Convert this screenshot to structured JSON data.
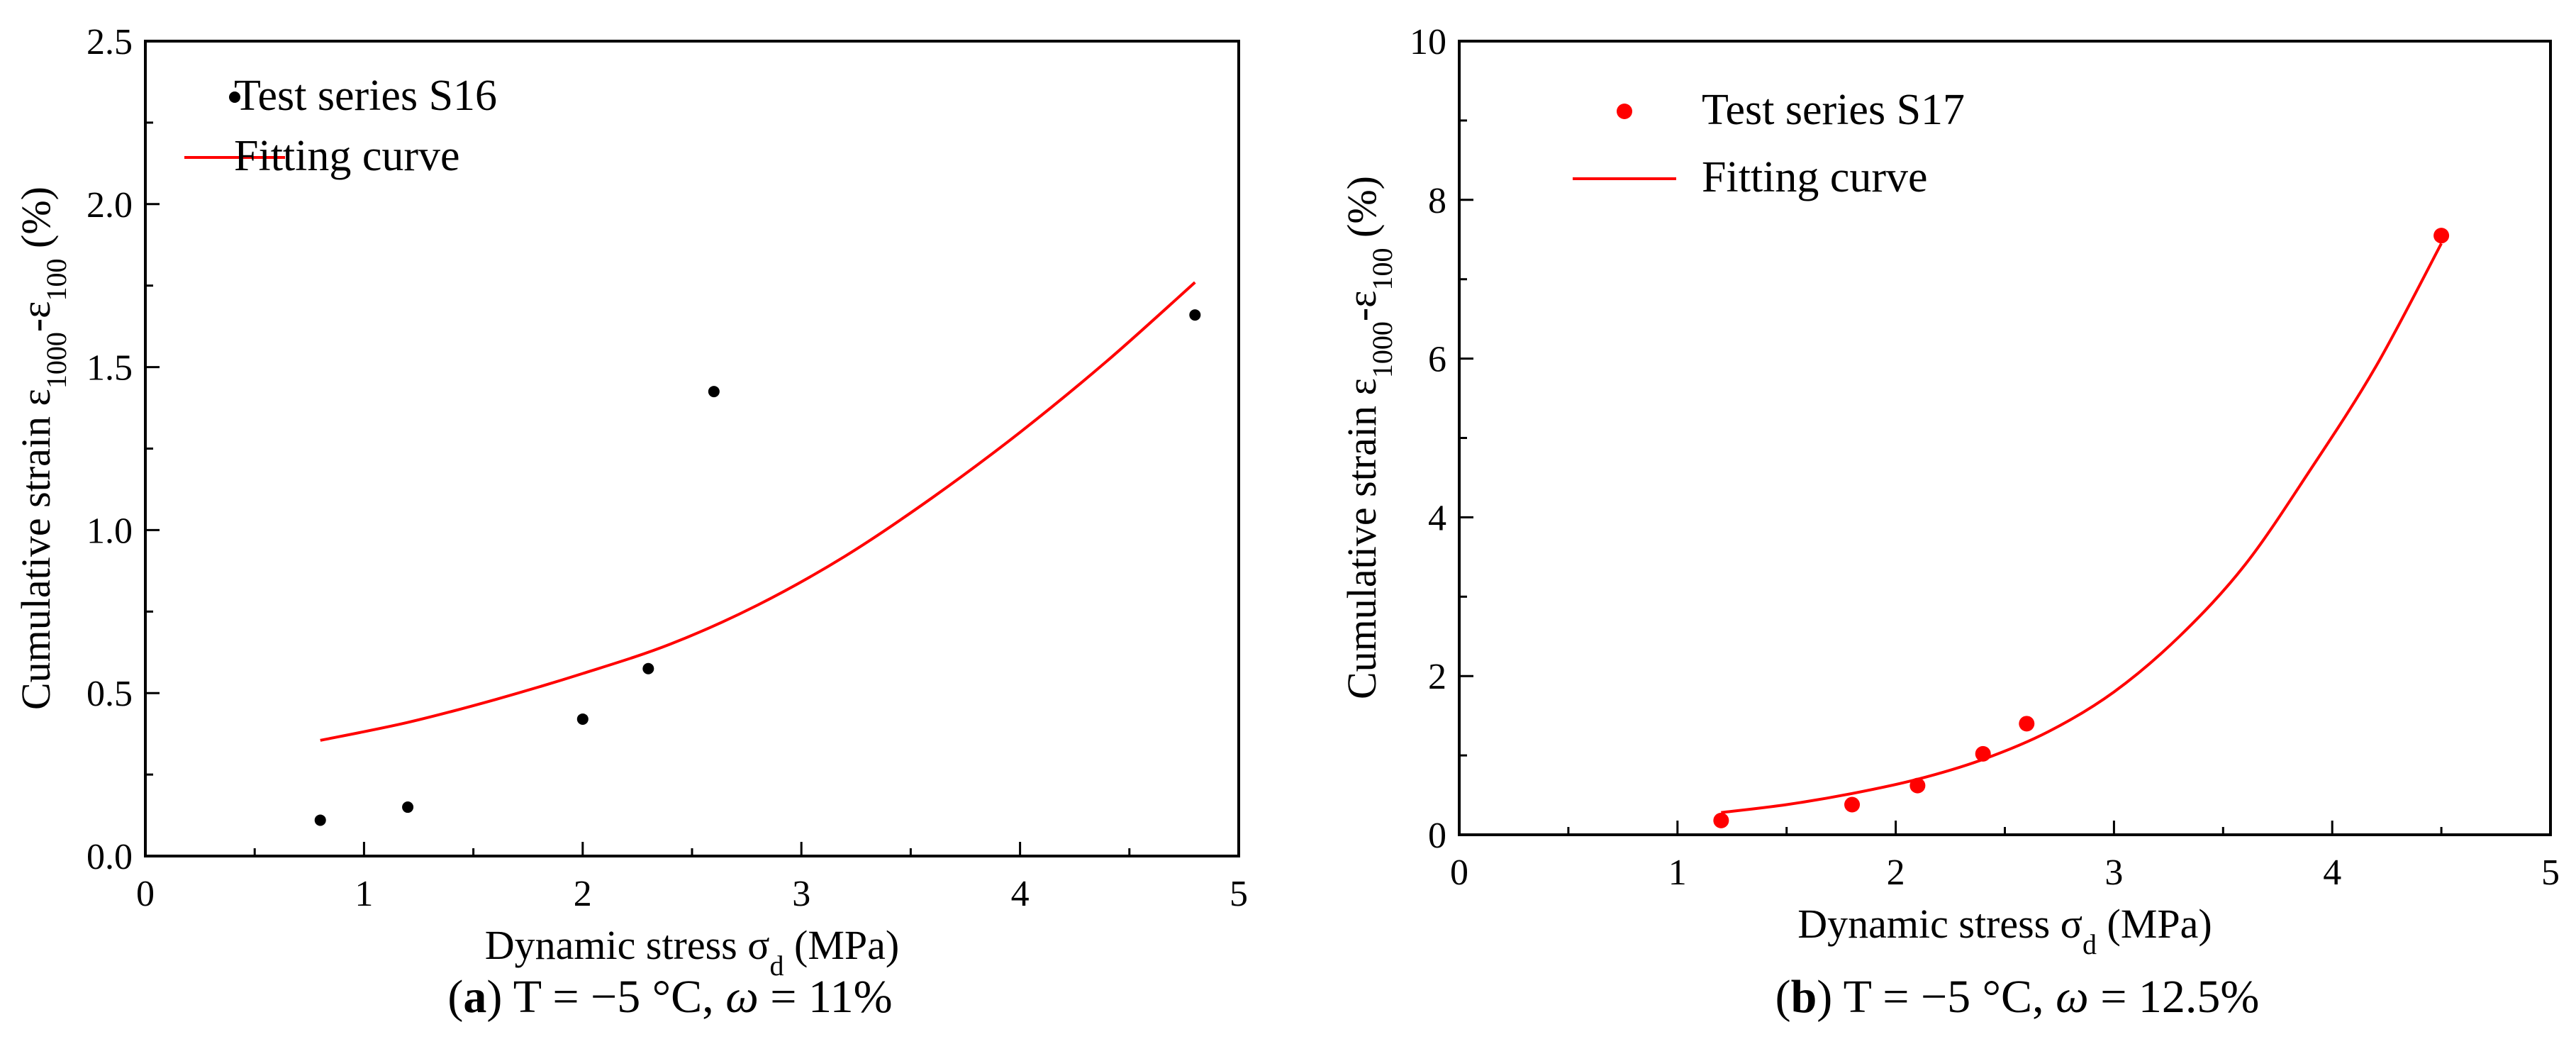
{
  "chart_data": [
    {
      "id": "a",
      "type": "scatter",
      "xlabel": "Dynamic stress σd (MPa)",
      "ylabel": "Cumulative strain ε1000-ε100 (%)",
      "xlim": [
        0,
        5
      ],
      "ylim": [
        0,
        2.5
      ],
      "xticks": [
        0,
        1,
        2,
        3,
        4,
        5
      ],
      "xtick_labels": [
        "0",
        "1",
        "2",
        "3",
        "4",
        "5"
      ],
      "yticks": [
        0,
        0.5,
        1,
        1.5,
        2,
        2.5
      ],
      "ytick_labels": [
        "0.0",
        "0.5",
        "1.0",
        "1.5",
        "2.0",
        "2.5"
      ],
      "legend_position": "top-left",
      "series": [
        {
          "name": "Test series S16",
          "kind": "points",
          "color": "#000000",
          "x": [
            0.8,
            1.2,
            2.0,
            2.3,
            2.6,
            4.8
          ],
          "y": [
            0.11,
            0.15,
            0.42,
            0.575,
            1.425,
            1.66
          ]
        },
        {
          "name": "Fitting curve",
          "kind": "curve",
          "color": "#ff0000",
          "x": [
            0.8,
            1.2,
            1.6,
            2.0,
            2.4,
            2.8,
            3.2,
            3.6,
            4.0,
            4.4,
            4.8
          ],
          "y": [
            0.355,
            0.41,
            0.48,
            0.56,
            0.65,
            0.77,
            0.92,
            1.1,
            1.3,
            1.52,
            1.76
          ]
        }
      ],
      "caption": {
        "letter": "a",
        "text": "T = −5 °C, ",
        "omega": "ω",
        "value": " = 11%"
      }
    },
    {
      "id": "b",
      "type": "scatter",
      "xlabel": "Dynamic stress σd (MPa)",
      "ylabel": "Cumulative strain ε1000-ε100 (%)",
      "xlim": [
        0,
        5
      ],
      "ylim": [
        0,
        10
      ],
      "xticks": [
        0,
        1,
        2,
        3,
        4,
        5
      ],
      "xtick_labels": [
        "0",
        "1",
        "2",
        "3",
        "4",
        "5"
      ],
      "yticks": [
        0,
        2,
        4,
        6,
        8,
        10
      ],
      "ytick_labels": [
        "0",
        "2",
        "4",
        "6",
        "8",
        "10"
      ],
      "legend_position": "top-left",
      "series": [
        {
          "name": "Test series S17",
          "kind": "points",
          "color": "#ff0000",
          "x": [
            1.2,
            1.8,
            2.1,
            2.4,
            2.6,
            4.5
          ],
          "y": [
            0.18,
            0.38,
            0.62,
            1.02,
            1.4,
            7.55
          ]
        },
        {
          "name": "Fitting curve",
          "kind": "curve",
          "color": "#ff0000",
          "x": [
            1.2,
            1.5,
            1.8,
            2.1,
            2.4,
            2.7,
            3.0,
            3.3,
            3.6,
            3.9,
            4.2,
            4.5
          ],
          "y": [
            0.28,
            0.38,
            0.52,
            0.7,
            0.95,
            1.3,
            1.8,
            2.5,
            3.4,
            4.6,
            5.9,
            7.45
          ]
        }
      ],
      "caption": {
        "letter": "b",
        "text": "T = −5 °C, ",
        "omega": "ω",
        "value": " = 12.5%"
      }
    }
  ]
}
